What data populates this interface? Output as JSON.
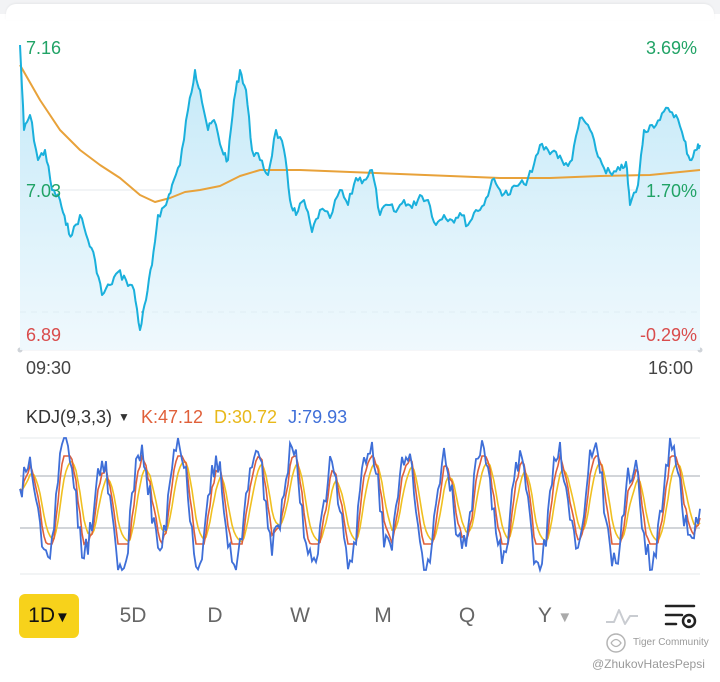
{
  "intraday": {
    "price_high": "7.16",
    "price_mid": "7.03",
    "price_low": "6.89",
    "pct_high": "3.69%",
    "pct_mid": "1.70%",
    "pct_low": "-0.29%",
    "time_start": "09:30",
    "time_end": "16:00",
    "colors": {
      "price_line": "#1ab0dc",
      "avg_line": "#e8a23a",
      "area_fill": "#d9f1fb",
      "ref_line": "#b0b8c0"
    }
  },
  "kdj": {
    "name": "KDJ(9,3,3)",
    "k_label": "K:47.12",
    "d_label": "D:30.72",
    "j_label": "J:79.93",
    "colors": {
      "k": "#e0603a",
      "d": "#f0c020",
      "j": "#3f6fd8"
    }
  },
  "periods": [
    {
      "label": "1D",
      "active": true
    },
    {
      "label": "5D"
    },
    {
      "label": "D"
    },
    {
      "label": "W"
    },
    {
      "label": "M"
    },
    {
      "label": "Q"
    },
    {
      "label": "Y"
    }
  ],
  "icons": {
    "chart_type": "line-chart-icon",
    "settings": "chart-settings-icon"
  },
  "watermark": {
    "brand": "Tiger Community",
    "handle": "@ZhukovHatesPepsi"
  }
}
